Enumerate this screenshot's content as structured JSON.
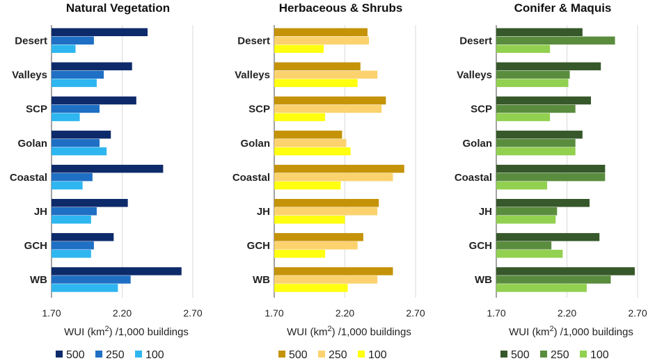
{
  "chart_data": [
    {
      "type": "bar",
      "orientation": "horizontal",
      "title": "Natural Vegetation",
      "categories": [
        "Desert",
        "Valleys",
        "SCP",
        "Golan",
        "Coastal",
        "JH",
        "GCH",
        "WB"
      ],
      "series": [
        {
          "name": "500",
          "color": "#0d2a6b",
          "values": [
            2.38,
            2.27,
            2.3,
            2.12,
            2.49,
            2.24,
            2.14,
            2.62
          ]
        },
        {
          "name": "250",
          "color": "#1f6fc4",
          "values": [
            2.0,
            2.07,
            2.04,
            2.04,
            1.99,
            2.02,
            2.0,
            2.26
          ]
        },
        {
          "name": "100",
          "color": "#2eb6f0",
          "values": [
            1.87,
            2.02,
            1.9,
            2.09,
            1.92,
            1.98,
            1.98,
            2.17
          ]
        }
      ],
      "xlim": [
        1.7,
        2.7
      ],
      "xticks": [
        "1.70",
        "2.20",
        "2.70"
      ],
      "xlabel": "WUI (km",
      "xlabel_sup": "2",
      "xlabel_tail": ") /1,000 buildings"
    },
    {
      "type": "bar",
      "orientation": "horizontal",
      "title": "Herbaceous & Shrubs",
      "categories": [
        "Desert",
        "Valleys",
        "SCP",
        "Golan",
        "Coastal",
        "JH",
        "GCH",
        "WB"
      ],
      "series": [
        {
          "name": "500",
          "color": "#c49307",
          "values": [
            2.36,
            2.31,
            2.49,
            2.18,
            2.62,
            2.44,
            2.33,
            2.54
          ]
        },
        {
          "name": "250",
          "color": "#fbd26e",
          "values": [
            2.37,
            2.43,
            2.46,
            2.21,
            2.54,
            2.43,
            2.29,
            2.43
          ]
        },
        {
          "name": "100",
          "color": "#ffff10",
          "values": [
            2.05,
            2.29,
            2.06,
            2.24,
            2.17,
            2.2,
            2.06,
            2.22
          ]
        }
      ],
      "xlim": [
        1.7,
        2.7
      ],
      "xticks": [
        "1.70",
        "2.20",
        "2.70"
      ],
      "xlabel": "WUI (km",
      "xlabel_sup": "2",
      "xlabel_tail": ") /1,000 buildings"
    },
    {
      "type": "bar",
      "orientation": "horizontal",
      "title": "Conifer & Maquis",
      "categories": [
        "Desert",
        "Valleys",
        "SCP",
        "Golan",
        "Coastal",
        "JH",
        "GCH",
        "WB"
      ],
      "series": [
        {
          "name": "500",
          "color": "#36582a",
          "values": [
            2.31,
            2.44,
            2.37,
            2.31,
            2.47,
            2.36,
            2.43,
            2.68
          ]
        },
        {
          "name": "250",
          "color": "#5a8c3e",
          "values": [
            2.54,
            2.22,
            2.26,
            2.26,
            2.47,
            2.13,
            2.09,
            2.51
          ]
        },
        {
          "name": "100",
          "color": "#92d050",
          "values": [
            2.08,
            2.21,
            2.08,
            2.26,
            2.06,
            2.12,
            2.17,
            2.34
          ]
        }
      ],
      "xlim": [
        1.7,
        2.7
      ],
      "xticks": [
        "1.70",
        "2.20",
        "2.70"
      ],
      "xlabel": "WUI (km",
      "xlabel_sup": "2",
      "xlabel_tail": ") /1,000 buildings"
    }
  ]
}
